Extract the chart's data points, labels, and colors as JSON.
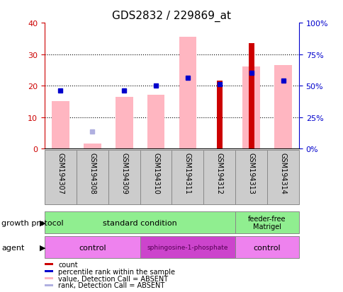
{
  "title": "GDS2832 / 229869_at",
  "samples": [
    "GSM194307",
    "GSM194308",
    "GSM194309",
    "GSM194310",
    "GSM194311",
    "GSM194312",
    "GSM194313",
    "GSM194314"
  ],
  "ylim_left": [
    0,
    40
  ],
  "ylim_right": [
    0,
    100
  ],
  "yticks_left": [
    0,
    10,
    20,
    30,
    40
  ],
  "yticks_right": [
    0,
    25,
    50,
    75,
    100
  ],
  "ylabel_left_color": "#cc0000",
  "ylabel_right_color": "#0000cc",
  "pink_bars": [
    15.0,
    1.5,
    16.5,
    17.0,
    35.5,
    null,
    26.0,
    26.5
  ],
  "red_bars": [
    null,
    null,
    null,
    null,
    null,
    21.5,
    33.5,
    null
  ],
  "blue_squares_rank": [
    18.5,
    null,
    18.5,
    20.0,
    22.5,
    20.5,
    24.0,
    21.5
  ],
  "light_blue_squares": [
    null,
    5.5,
    null,
    null,
    null,
    null,
    null,
    null
  ],
  "legend_items": [
    {
      "color": "#cc0000",
      "label": "count"
    },
    {
      "color": "#0000cc",
      "label": "percentile rank within the sample"
    },
    {
      "color": "#ffb6c1",
      "label": "value, Detection Call = ABSENT"
    },
    {
      "color": "#b0b0e0",
      "label": "rank, Detection Call = ABSENT"
    }
  ],
  "pink_color": "#ffb6c1",
  "red_color": "#cc0000",
  "blue_color": "#0000cc",
  "light_blue_color": "#b0b0e0",
  "grid_color": "#000000",
  "sample_label_bg": "#cccccc",
  "gp_color": "#90ee90",
  "agent_control_color": "#ee82ee",
  "agent_sphingo_color": "#cc44cc",
  "agent_sphingo_text_color": "#550055"
}
